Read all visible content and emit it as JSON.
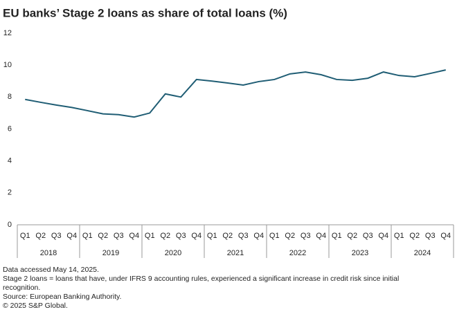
{
  "chart_data": {
    "type": "line",
    "title": "EU banks’ Stage 2 loans as share of total loans (%)",
    "categories": [
      "Q1",
      "Q2",
      "Q3",
      "Q4",
      "Q1",
      "Q2",
      "Q3",
      "Q4",
      "Q1",
      "Q2",
      "Q3",
      "Q4",
      "Q1",
      "Q2",
      "Q3",
      "Q4",
      "Q1",
      "Q2",
      "Q3",
      "Q4",
      "Q1",
      "Q2",
      "Q3",
      "Q4",
      "Q1",
      "Q2",
      "Q3",
      "Q4"
    ],
    "category_groups": [
      "2018",
      "2019",
      "2020",
      "2021",
      "2022",
      "2023",
      "2024"
    ],
    "values": [
      7.85,
      7.67,
      7.5,
      7.35,
      7.15,
      6.95,
      6.9,
      6.75,
      7.0,
      8.2,
      8.0,
      9.1,
      9.0,
      8.88,
      8.75,
      8.97,
      9.1,
      9.45,
      9.57,
      9.4,
      9.1,
      9.05,
      9.18,
      9.57,
      9.35,
      9.27,
      9.48,
      9.7
    ],
    "color": "#1f5d74",
    "ylim": [
      0,
      12
    ],
    "yticks": [
      0,
      2,
      4,
      6,
      8,
      10,
      12
    ],
    "grid": false,
    "notes": [
      "Data accessed May 14, 2025.",
      "Stage 2 loans = loans that have, under IFRS 9 accounting rules, experienced a significant increase in credit risk since initial recognition.",
      "Source: European Banking Authority.",
      "© 2025 S&P Global."
    ]
  }
}
